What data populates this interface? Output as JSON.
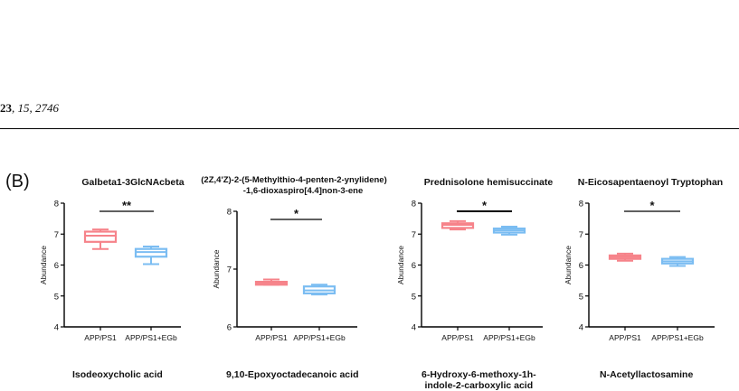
{
  "header": {
    "citation_bold": "23",
    "citation_rest": ", 15, 2746"
  },
  "panel_label": "(B)",
  "colors": {
    "group1": "#F6838A",
    "group2": "#7BBDF2",
    "axis": "#000000"
  },
  "chart_data": [
    {
      "type": "box",
      "title": "Galbeta1-3GlcNAcbeta",
      "ylabel": "Abundance",
      "ylim": [
        4,
        8
      ],
      "yticks": [
        4,
        5,
        6,
        7,
        8
      ],
      "categories": [
        "APP/PS1",
        "APP/PS1+EGb"
      ],
      "boxes": [
        {
          "group": "APP/PS1",
          "min": 6.52,
          "q1": 6.75,
          "median": 6.95,
          "q3": 7.08,
          "max": 7.15
        },
        {
          "group": "APP/PS1+EGb",
          "min": 6.03,
          "q1": 6.27,
          "median": 6.42,
          "q3": 6.52,
          "max": 6.6
        }
      ],
      "significance": "**"
    },
    {
      "type": "box",
      "title": "(2Z,4'Z)-2-(5-Methylthio-4-penten-2-ynylidene) -1,6-dioxaspiro[4.4]non-3-ene",
      "title_line1": "(2Z,4'Z)-2-(5-Methylthio-4-penten-2-ynylidene)",
      "title_line2": "-1,6-dioxaspiro[4.4]non-3-ene",
      "ylabel": "Abundance",
      "ylim": [
        6,
        8
      ],
      "yticks": [
        6,
        7,
        8
      ],
      "categories": [
        "APP/PS1",
        "APP/PS1+EGb"
      ],
      "boxes": [
        {
          "group": "APP/PS1",
          "min": 6.73,
          "q1": 6.73,
          "median": 6.76,
          "q3": 6.78,
          "max": 6.82
        },
        {
          "group": "APP/PS1+EGb",
          "min": 6.56,
          "q1": 6.58,
          "median": 6.63,
          "q3": 6.7,
          "max": 6.73
        }
      ],
      "significance": "*"
    },
    {
      "type": "box",
      "title": "Prednisolone hemisuccinate",
      "ylabel": "Abundance",
      "ylim": [
        4,
        8
      ],
      "yticks": [
        4,
        5,
        6,
        7,
        8
      ],
      "categories": [
        "APP/PS1",
        "APP/PS1+EGb"
      ],
      "boxes": [
        {
          "group": "APP/PS1",
          "min": 7.15,
          "q1": 7.2,
          "median": 7.3,
          "q3": 7.35,
          "max": 7.42
        },
        {
          "group": "APP/PS1+EGb",
          "min": 6.98,
          "q1": 7.05,
          "median": 7.12,
          "q3": 7.18,
          "max": 7.24
        }
      ],
      "significance": "*"
    },
    {
      "type": "box",
      "title": "N-Eicosapentaenoyl Tryptophan",
      "ylabel": "Abundance",
      "ylim": [
        4,
        8
      ],
      "yticks": [
        4,
        5,
        6,
        7,
        8
      ],
      "categories": [
        "APP/PS1",
        "APP/PS1+EGb"
      ],
      "boxes": [
        {
          "group": "APP/PS1",
          "min": 6.14,
          "q1": 6.2,
          "median": 6.26,
          "q3": 6.31,
          "max": 6.37
        },
        {
          "group": "APP/PS1+EGb",
          "min": 5.97,
          "q1": 6.05,
          "median": 6.12,
          "q3": 6.2,
          "max": 6.26
        }
      ],
      "significance": "*"
    }
  ],
  "next_row_titles": [
    "Isodeoxycholic acid",
    "9,10-Epoxyoctadecanoic acid",
    "6-Hydroxy-6-methoxy-1h-indole-2-carboxylic acid",
    "N-Acetyllactosamine"
  ],
  "next_row_title_3_line1": "6-Hydroxy-6-methoxy-1h-",
  "next_row_title_3_line2": "indole-2-carboxylic acid"
}
